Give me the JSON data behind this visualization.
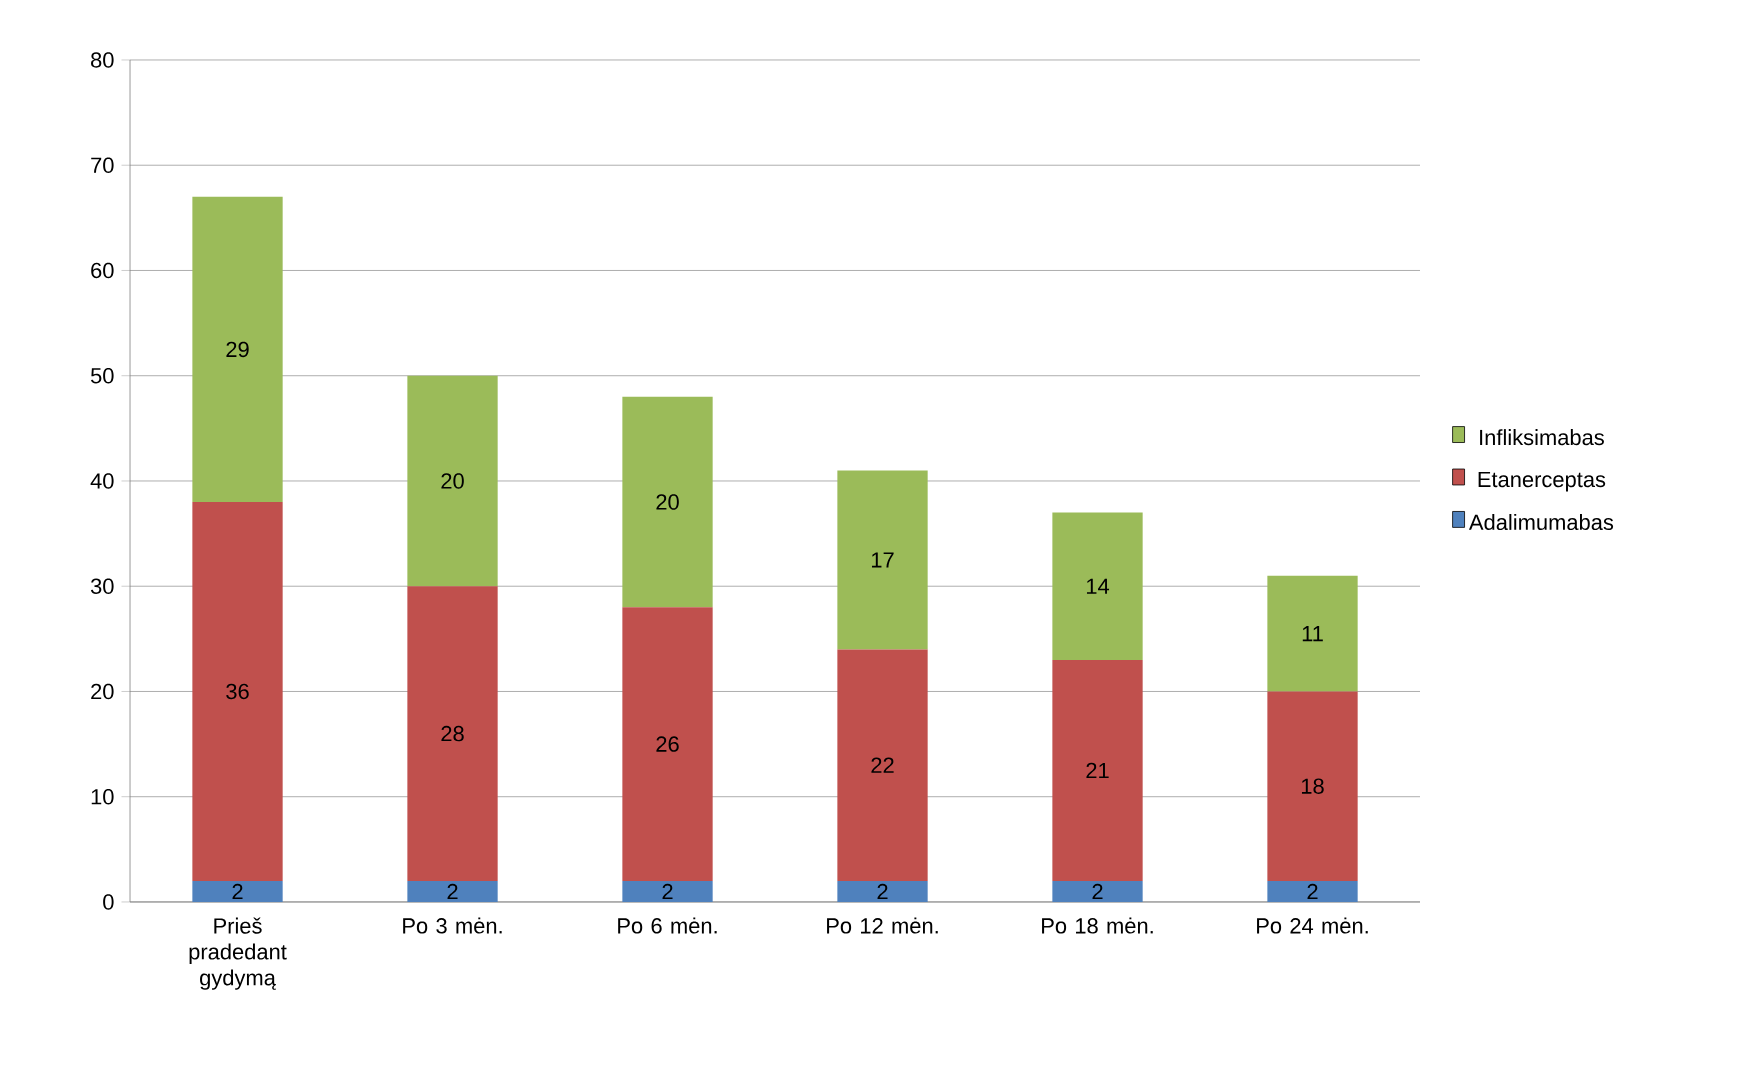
{
  "chart_data": {
    "type": "bar",
    "stacked": true,
    "categories": [
      "Prieš pradedant gydymą",
      "Po 3 mėn.",
      "Po 6 mėn.",
      "Po 12 mėn.",
      "Po 18 mėn.",
      "Po 24 mėn."
    ],
    "series": [
      {
        "name": "Adalimumabas",
        "color": "#4f81bd",
        "values": [
          2,
          2,
          2,
          2,
          2,
          2
        ]
      },
      {
        "name": "Etanerceptas",
        "color": "#c0504d",
        "values": [
          36,
          28,
          26,
          22,
          21,
          18
        ]
      },
      {
        "name": "Infliksimabas",
        "color": "#9bbb59",
        "values": [
          29,
          20,
          20,
          17,
          14,
          11
        ]
      }
    ],
    "ylim": [
      0,
      80
    ],
    "yticks": [
      0,
      10,
      20,
      30,
      40,
      50,
      60,
      70,
      80
    ],
    "grid": "y",
    "legend": "right",
    "data_labels": true
  }
}
